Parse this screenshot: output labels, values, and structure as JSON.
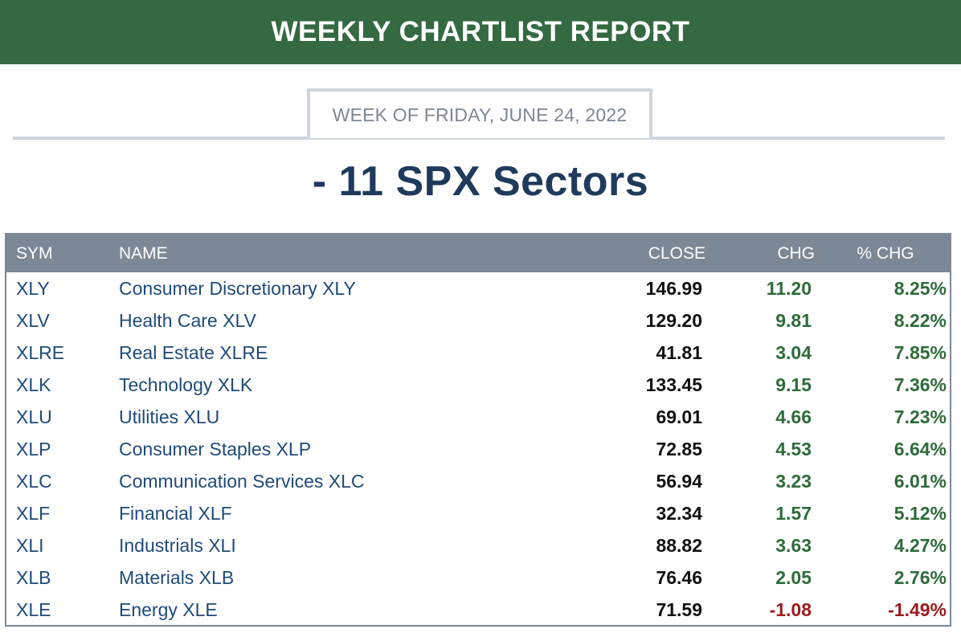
{
  "banner": {
    "title": "WEEKLY CHARTLIST REPORT",
    "color": "#346942"
  },
  "week_label": "WEEK OF FRIDAY, JUNE 24, 2022",
  "section_title": "- 11 SPX Sectors",
  "table": {
    "headers": {
      "sym": "SYM",
      "name": "NAME",
      "close": "CLOSE",
      "chg": "CHG",
      "pct": "% CHG"
    },
    "positive_color": "#2e6b3a",
    "negative_color": "#9b1b1b",
    "rows": [
      {
        "sym": "XLY",
        "name": "Consumer Discretionary XLY",
        "close": "146.99",
        "chg": "11.20",
        "pct": "8.25%"
      },
      {
        "sym": "XLV",
        "name": "Health Care XLV",
        "close": "129.20",
        "chg": "9.81",
        "pct": "8.22%"
      },
      {
        "sym": "XLRE",
        "name": "Real Estate XLRE",
        "close": "41.81",
        "chg": "3.04",
        "pct": "7.85%"
      },
      {
        "sym": "XLK",
        "name": "Technology XLK",
        "close": "133.45",
        "chg": "9.15",
        "pct": "7.36%"
      },
      {
        "sym": "XLU",
        "name": "Utilities XLU",
        "close": "69.01",
        "chg": "4.66",
        "pct": "7.23%"
      },
      {
        "sym": "XLP",
        "name": "Consumer Staples XLP",
        "close": "72.85",
        "chg": "4.53",
        "pct": "6.64%"
      },
      {
        "sym": "XLC",
        "name": "Communication Services XLC",
        "close": "56.94",
        "chg": "3.23",
        "pct": "6.01%"
      },
      {
        "sym": "XLF",
        "name": "Financial XLF",
        "close": "32.34",
        "chg": "1.57",
        "pct": "5.12%"
      },
      {
        "sym": "XLI",
        "name": "Industrials XLI",
        "close": "88.82",
        "chg": "3.63",
        "pct": "4.27%"
      },
      {
        "sym": "XLB",
        "name": "Materials XLB",
        "close": "76.46",
        "chg": "2.05",
        "pct": "2.76%"
      },
      {
        "sym": "XLE",
        "name": "Energy XLE",
        "close": "71.59",
        "chg": "-1.08",
        "pct": "-1.49%"
      }
    ]
  }
}
